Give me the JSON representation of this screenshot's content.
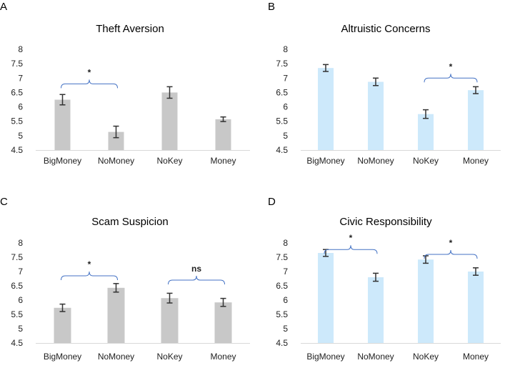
{
  "colors": {
    "gray": "#c8c8c8",
    "blue": "#cde9fb",
    "bracket": "#4472c4",
    "errorbar": "#333333"
  },
  "chart_data": [
    {
      "panel": "A",
      "title": "Theft Aversion",
      "type": "bar",
      "color": "gray",
      "categories": [
        "BigMoney",
        "NoMoney",
        "NoKey",
        "Money"
      ],
      "values": [
        6.25,
        5.13,
        6.5,
        5.57
      ],
      "errors": [
        0.18,
        0.2,
        0.2,
        0.08
      ],
      "ylim": [
        4.5,
        8
      ],
      "yticks": [
        "4.5",
        "5",
        "5.5",
        "6",
        "6.5",
        "7",
        "7.5",
        "8"
      ],
      "brackets": [
        {
          "from": 0,
          "to": 1,
          "label": "*",
          "y": 6.8
        }
      ]
    },
    {
      "panel": "B",
      "title": "Altruistic Concerns",
      "type": "bar",
      "color": "blue",
      "categories": [
        "BigMoney",
        "NoMoney",
        "NoKey",
        "Money"
      ],
      "values": [
        7.35,
        6.87,
        5.75,
        6.58
      ],
      "errors": [
        0.12,
        0.13,
        0.15,
        0.12
      ],
      "ylim": [
        4.5,
        8
      ],
      "yticks": [
        "4.5",
        "5",
        "5.5",
        "6",
        "6.5",
        "7",
        "7.5",
        "8"
      ],
      "brackets": [
        {
          "from": 2,
          "to": 3,
          "label": "*",
          "y": 7.0
        }
      ]
    },
    {
      "panel": "C",
      "title": "Scam Suspicion",
      "type": "bar",
      "color": "gray",
      "categories": [
        "BigMoney",
        "NoMoney",
        "NoKey",
        "Money"
      ],
      "values": [
        5.73,
        6.43,
        6.07,
        5.92
      ],
      "errors": [
        0.13,
        0.15,
        0.17,
        0.14
      ],
      "ylim": [
        4.5,
        8
      ],
      "yticks": [
        "4.5",
        "5",
        "5.5",
        "6",
        "6.5",
        "7",
        "7.5",
        "8"
      ],
      "brackets": [
        {
          "from": 0,
          "to": 1,
          "label": "*",
          "y": 6.85
        },
        {
          "from": 2,
          "to": 3,
          "label": "ns",
          "y": 6.7
        }
      ]
    },
    {
      "panel": "D",
      "title": "Civic Responsibility",
      "type": "bar",
      "color": "blue",
      "categories": [
        "BigMoney",
        "NoMoney",
        "NoKey",
        "Money"
      ],
      "values": [
        7.65,
        6.8,
        7.42,
        7.0
      ],
      "errors": [
        0.12,
        0.14,
        0.13,
        0.13
      ],
      "ylim": [
        4.5,
        8
      ],
      "yticks": [
        "4.5",
        "5",
        "5.5",
        "6",
        "6.5",
        "7",
        "7.5",
        "8"
      ],
      "brackets": [
        {
          "from": 0,
          "to": 1,
          "label": "*",
          "y": 7.77
        },
        {
          "from": 2,
          "to": 3,
          "label": "*",
          "y": 7.6
        }
      ]
    }
  ]
}
